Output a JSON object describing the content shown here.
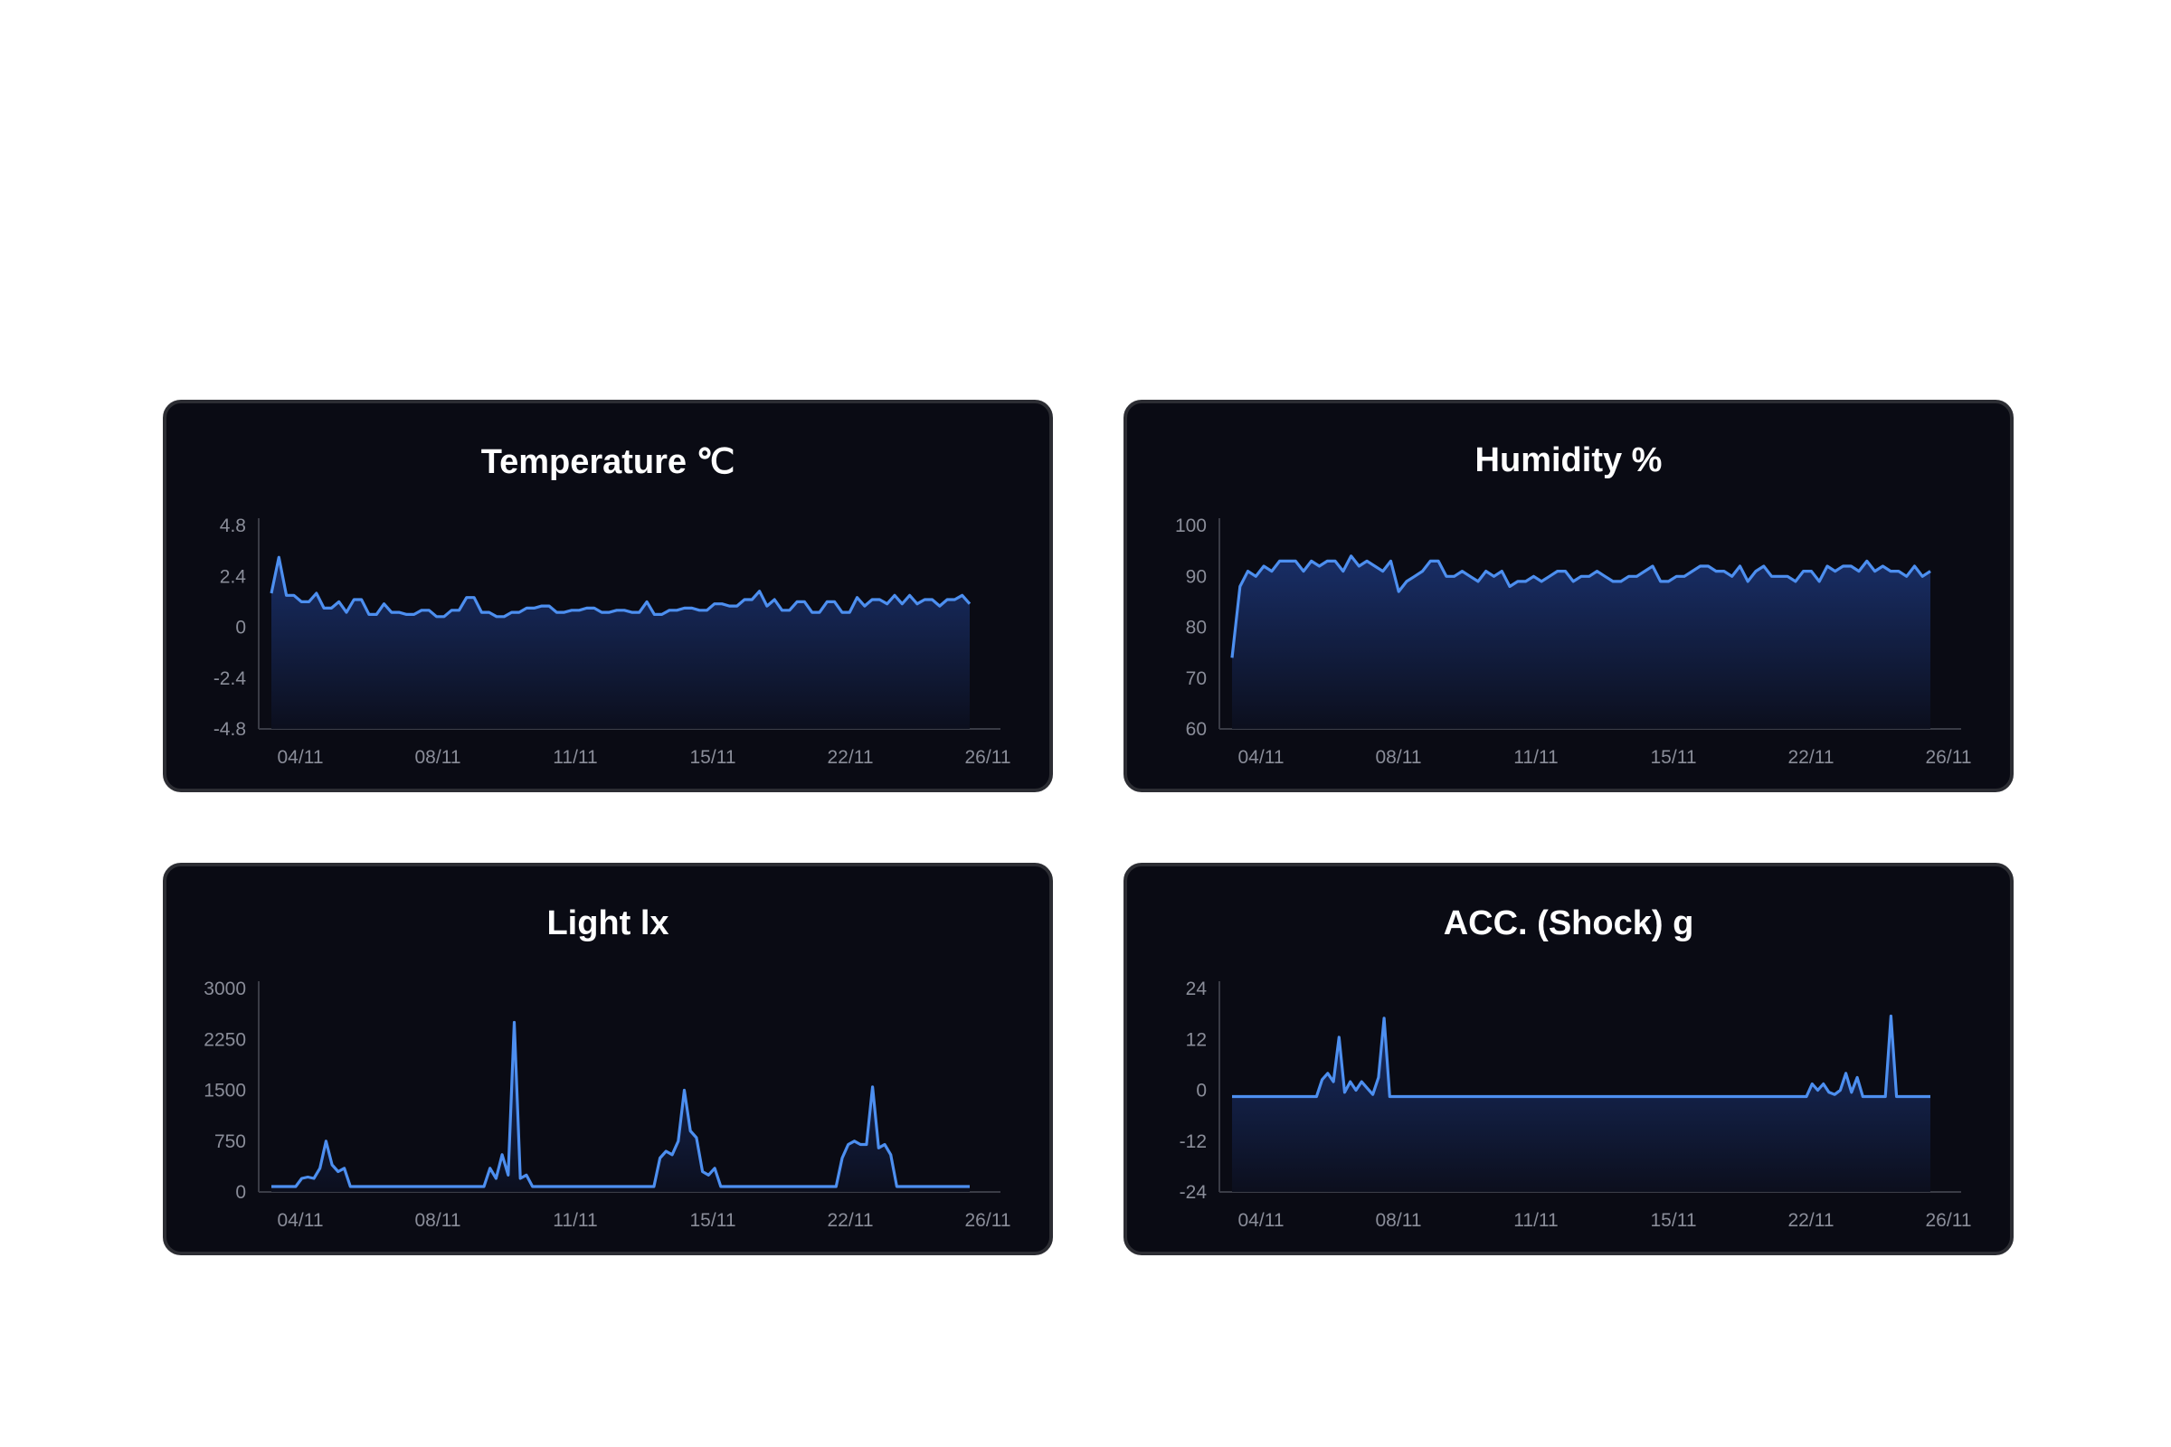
{
  "charts": [
    {
      "title": "Temperature  ℃"
    },
    {
      "title": "Humidity %"
    },
    {
      "title": "Light  lx"
    },
    {
      "title": "ACC. (Shock) g"
    }
  ],
  "colors": {
    "line": "#4d8ff0",
    "fill_top": "#1a3270",
    "fill_bottom": "#0c0f1e",
    "axis": "#3a3c46",
    "label": "#8a8d99",
    "card_bg": "#0a0b14"
  },
  "chart_data": [
    {
      "type": "area",
      "title": "Temperature  ℃",
      "x_ticks": [
        "04/11",
        "08/11",
        "11/11",
        "15/11",
        "22/11",
        "26/11"
      ],
      "y_ticks": [
        "4.8",
        "2.4",
        "0",
        "-2.4",
        "-4.8"
      ],
      "ylim": [
        -4.8,
        4.8
      ],
      "values": [
        1.6,
        3.3,
        1.5,
        1.5,
        1.2,
        1.2,
        1.6,
        0.9,
        0.9,
        1.2,
        0.7,
        1.3,
        1.3,
        0.6,
        0.6,
        1.1,
        0.7,
        0.7,
        0.6,
        0.6,
        0.8,
        0.8,
        0.5,
        0.5,
        0.8,
        0.8,
        1.4,
        1.4,
        0.7,
        0.7,
        0.5,
        0.5,
        0.7,
        0.7,
        0.9,
        0.9,
        1.0,
        1.0,
        0.7,
        0.7,
        0.8,
        0.8,
        0.9,
        0.9,
        0.7,
        0.7,
        0.8,
        0.8,
        0.7,
        0.7,
        1.2,
        0.6,
        0.6,
        0.8,
        0.8,
        0.9,
        0.9,
        0.8,
        0.8,
        1.1,
        1.1,
        1.0,
        1.0,
        1.3,
        1.3,
        1.7,
        1.0,
        1.3,
        0.8,
        0.8,
        1.2,
        1.2,
        0.7,
        0.7,
        1.2,
        1.2,
        0.7,
        0.7,
        1.4,
        1.0,
        1.3,
        1.3,
        1.1,
        1.5,
        1.1,
        1.5,
        1.1,
        1.3,
        1.3,
        1.0,
        1.3,
        1.3,
        1.5,
        1.1
      ],
      "xlabel": "",
      "ylabel": ""
    },
    {
      "type": "area",
      "title": "Humidity %",
      "x_ticks": [
        "04/11",
        "08/11",
        "11/11",
        "15/11",
        "22/11",
        "26/11"
      ],
      "y_ticks": [
        "100",
        "90",
        "80",
        "70",
        "60"
      ],
      "ylim": [
        60,
        100
      ],
      "values": [
        74,
        88,
        91,
        90,
        92,
        91,
        93,
        93,
        93,
        91,
        93,
        92,
        93,
        93,
        91,
        94,
        92,
        93,
        92,
        91,
        93,
        87,
        89,
        90,
        91,
        93,
        93,
        90,
        90,
        91,
        90,
        89,
        91,
        90,
        91,
        88,
        89,
        89,
        90,
        89,
        90,
        91,
        91,
        89,
        90,
        90,
        91,
        90,
        89,
        89,
        90,
        90,
        91,
        92,
        89,
        89,
        90,
        90,
        91,
        92,
        92,
        91,
        91,
        90,
        92,
        89,
        91,
        92,
        90,
        90,
        90,
        89,
        91,
        91,
        89,
        92,
        91,
        92,
        92,
        91,
        93,
        91,
        92,
        91,
        91,
        90,
        92,
        90,
        91
      ],
      "xlabel": "",
      "ylabel": ""
    },
    {
      "type": "area",
      "title": "Light  lx",
      "x_ticks": [
        "04/11",
        "08/11",
        "11/11",
        "15/11",
        "22/11",
        "26/11"
      ],
      "y_ticks": [
        "3000",
        "2250",
        "1500",
        "750",
        "0"
      ],
      "ylim": [
        0,
        3000
      ],
      "values": [
        80,
        80,
        80,
        80,
        80,
        200,
        220,
        200,
        350,
        750,
        400,
        300,
        350,
        80,
        80,
        80,
        80,
        80,
        80,
        80,
        80,
        80,
        80,
        80,
        80,
        80,
        80,
        80,
        80,
        80,
        80,
        80,
        80,
        80,
        80,
        80,
        350,
        200,
        550,
        250,
        2500,
        200,
        250,
        80,
        80,
        80,
        80,
        80,
        80,
        80,
        80,
        80,
        80,
        80,
        80,
        80,
        80,
        80,
        80,
        80,
        80,
        80,
        80,
        80,
        500,
        600,
        550,
        750,
        1500,
        900,
        800,
        300,
        250,
        350,
        80,
        80,
        80,
        80,
        80,
        80,
        80,
        80,
        80,
        80,
        80,
        80,
        80,
        80,
        80,
        80,
        80,
        80,
        80,
        80,
        500,
        700,
        750,
        700,
        700,
        1550,
        650,
        700,
        550,
        80,
        80,
        80,
        80,
        80,
        80,
        80,
        80,
        80,
        80,
        80,
        80,
        80
      ],
      "xlabel": "",
      "ylabel": ""
    },
    {
      "type": "area",
      "title": "ACC. (Shock) g",
      "x_ticks": [
        "04/11",
        "08/11",
        "11/11",
        "15/11",
        "22/11",
        "26/11"
      ],
      "y_ticks": [
        "24",
        "12",
        "0",
        "-12",
        "-24"
      ],
      "ylim": [
        -24,
        24
      ],
      "values": [
        -1.5,
        -1.5,
        -1.5,
        -1.5,
        -1.5,
        -1.5,
        -1.5,
        -1.5,
        -1.5,
        -1.5,
        -1.5,
        -1.5,
        -1.5,
        -1.5,
        -1.5,
        -1.5,
        2.5,
        4,
        2,
        12.5,
        -0.5,
        2,
        0,
        2,
        0.5,
        -1,
        3,
        17,
        -1.5,
        -1.5,
        -1.5,
        -1.5,
        -1.5,
        -1.5,
        -1.5,
        -1.5,
        -1.5,
        -1.5,
        -1.5,
        -1.5,
        -1.5,
        -1.5,
        -1.5,
        -1.5,
        -1.5,
        -1.5,
        -1.5,
        -1.5,
        -1.5,
        -1.5,
        -1.5,
        -1.5,
        -1.5,
        -1.5,
        -1.5,
        -1.5,
        -1.5,
        -1.5,
        -1.5,
        -1.5,
        -1.5,
        -1.5,
        -1.5,
        -1.5,
        -1.5,
        -1.5,
        -1.5,
        -1.5,
        -1.5,
        -1.5,
        -1.5,
        -1.5,
        -1.5,
        -1.5,
        -1.5,
        -1.5,
        -1.5,
        -1.5,
        -1.5,
        -1.5,
        -1.5,
        -1.5,
        -1.5,
        -1.5,
        -1.5,
        -1.5,
        -1.5,
        -1.5,
        -1.5,
        -1.5,
        -1.5,
        -1.5,
        -1.5,
        -1.5,
        -1.5,
        -1.5,
        -1.5,
        -1.5,
        -1.5,
        -1.5,
        -1.5,
        -1.5,
        -1.5,
        1.5,
        0,
        1.5,
        -0.5,
        -1,
        0,
        4,
        -0.5,
        3,
        -1.5,
        -1.5,
        -1.5,
        -1.5,
        -1.5,
        17.5,
        -1.5,
        -1.5,
        -1.5,
        -1.5,
        -1.5,
        -1.5,
        -1.5
      ],
      "xlabel": "",
      "ylabel": ""
    }
  ]
}
